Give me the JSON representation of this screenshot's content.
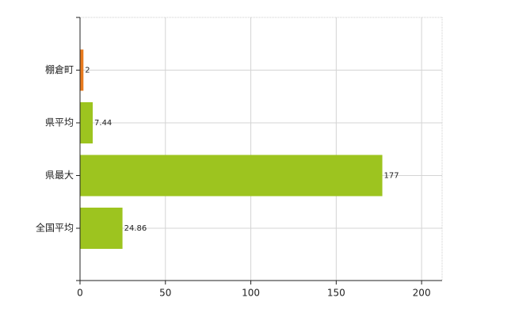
{
  "chart_data": {
    "type": "bar",
    "orientation": "horizontal",
    "categories": [
      "棚倉町",
      "県平均",
      "県最大",
      "全国平均"
    ],
    "values": [
      2,
      7.44,
      177,
      24.86
    ],
    "colors": [
      "#e87a1e",
      "#9dc41f",
      "#9dc41f",
      "#9dc41f"
    ],
    "xlim": [
      0,
      212
    ],
    "xticks": [
      0,
      50,
      100,
      150,
      200
    ],
    "grid": true
  }
}
